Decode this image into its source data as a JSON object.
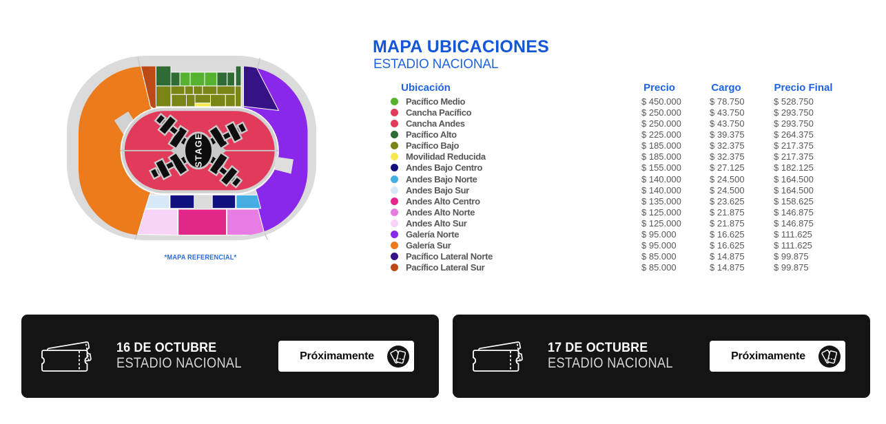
{
  "map": {
    "caption": "*MAPA REFERENCIAL*",
    "stage_label": "STAGE"
  },
  "colors": {
    "ring": "#DBDBDB",
    "track": "#D2D2D2",
    "notch": "#DEDEDE",
    "divider": "#C9C9C9",
    "stage_black": "#0D0D0D",
    "stage_outline": "#C9C9C9",
    "pacifico_medio": "#55B22E",
    "cancha": "#E23A5B",
    "pacifico_alto": "#2E6B35",
    "pacifico_bajo": "#7B8517",
    "movilidad_reducida": "#F7E84D",
    "andes_bajo_centro": "#10107E",
    "andes_bajo_norte": "#45AEE2",
    "andes_bajo_sur": "#D7E9F9",
    "andes_alto_centro": "#E32789",
    "andes_alto_norte": "#E87BE4",
    "andes_alto_sur": "#F8D3F8",
    "galeria_norte": "#8927EA",
    "galeria_sur": "#EC7B1E",
    "pacifico_lateral_norte": "#351285",
    "pacifico_lateral_sur": "#BC4A14"
  },
  "pricing": {
    "title": "MAPA UBICACIONES",
    "subtitle": "ESTADIO NACIONAL",
    "columns": [
      "Ubicación",
      "Precio",
      "Cargo",
      "Precio Final"
    ],
    "rows": [
      {
        "label": "Pacífico Medio",
        "color_key": "pacifico_medio",
        "precio": "$ 450.000",
        "cargo": "$ 78.750",
        "final": "$ 528.750"
      },
      {
        "label": "Cancha Pacífico",
        "color_key": "cancha",
        "precio": "$ 250.000",
        "cargo": "$ 43.750",
        "final": "$ 293.750"
      },
      {
        "label": "Cancha Andes",
        "color_key": "cancha",
        "precio": "$ 250.000",
        "cargo": "$ 43.750",
        "final": "$ 293.750"
      },
      {
        "label": "Pacífico Alto",
        "color_key": "pacifico_alto",
        "precio": "$ 225.000",
        "cargo": "$ 39.375",
        "final": "$ 264.375"
      },
      {
        "label": "Pacífico Bajo",
        "color_key": "pacifico_bajo",
        "precio": "$ 185.000",
        "cargo": "$ 32.375",
        "final": "$ 217.375"
      },
      {
        "label": "Movilidad Reducida",
        "color_key": "movilidad_reducida",
        "precio": "$ 185.000",
        "cargo": "$ 32.375",
        "final": "$ 217.375"
      },
      {
        "label": "Andes Bajo Centro",
        "color_key": "andes_bajo_centro",
        "precio": "$ 155.000",
        "cargo": "$ 27.125",
        "final": "$ 182.125"
      },
      {
        "label": "Andes Bajo Norte",
        "color_key": "andes_bajo_norte",
        "precio": "$ 140.000",
        "cargo": "$ 24.500",
        "final": "$ 164.500"
      },
      {
        "label": "Andes Bajo Sur",
        "color_key": "andes_bajo_sur",
        "precio": "$ 140.000",
        "cargo": "$ 24.500",
        "final": "$ 164.500"
      },
      {
        "label": "Andes Alto Centro",
        "color_key": "andes_alto_centro",
        "precio": "$ 135.000",
        "cargo": "$ 23.625",
        "final": "$ 158.625"
      },
      {
        "label": "Andes Alto Norte",
        "color_key": "andes_alto_norte",
        "precio": "$ 125.000",
        "cargo": "$ 21.875",
        "final": "$ 146.875"
      },
      {
        "label": "Andes Alto Sur",
        "color_key": "andes_alto_sur",
        "precio": "$ 125.000",
        "cargo": "$ 21.875",
        "final": "$ 146.875"
      },
      {
        "label": "Galería Norte",
        "color_key": "galeria_norte",
        "precio": "$ 95.000",
        "cargo": "$ 16.625",
        "final": "$ 111.625"
      },
      {
        "label": "Galería Sur",
        "color_key": "galeria_sur",
        "precio": "$ 95.000",
        "cargo": "$ 16.625",
        "final": "$ 111.625"
      },
      {
        "label": "Pacífico Lateral Norte",
        "color_key": "pacifico_lateral_norte",
        "precio": "$ 85.000",
        "cargo": "$ 14.875",
        "final": "$ 99.875"
      },
      {
        "label": "Pacífico Lateral Sur",
        "color_key": "pacifico_lateral_sur",
        "precio": "$ 85.000",
        "cargo": "$ 14.875",
        "final": "$ 99.875"
      }
    ]
  },
  "events": [
    {
      "date": "16 DE OCTUBRE",
      "venue": "ESTADIO NACIONAL",
      "button_label": "Próximamente"
    },
    {
      "date": "17 DE OCTUBRE",
      "venue": "ESTADIO NACIONAL",
      "button_label": "Próximamente"
    }
  ]
}
